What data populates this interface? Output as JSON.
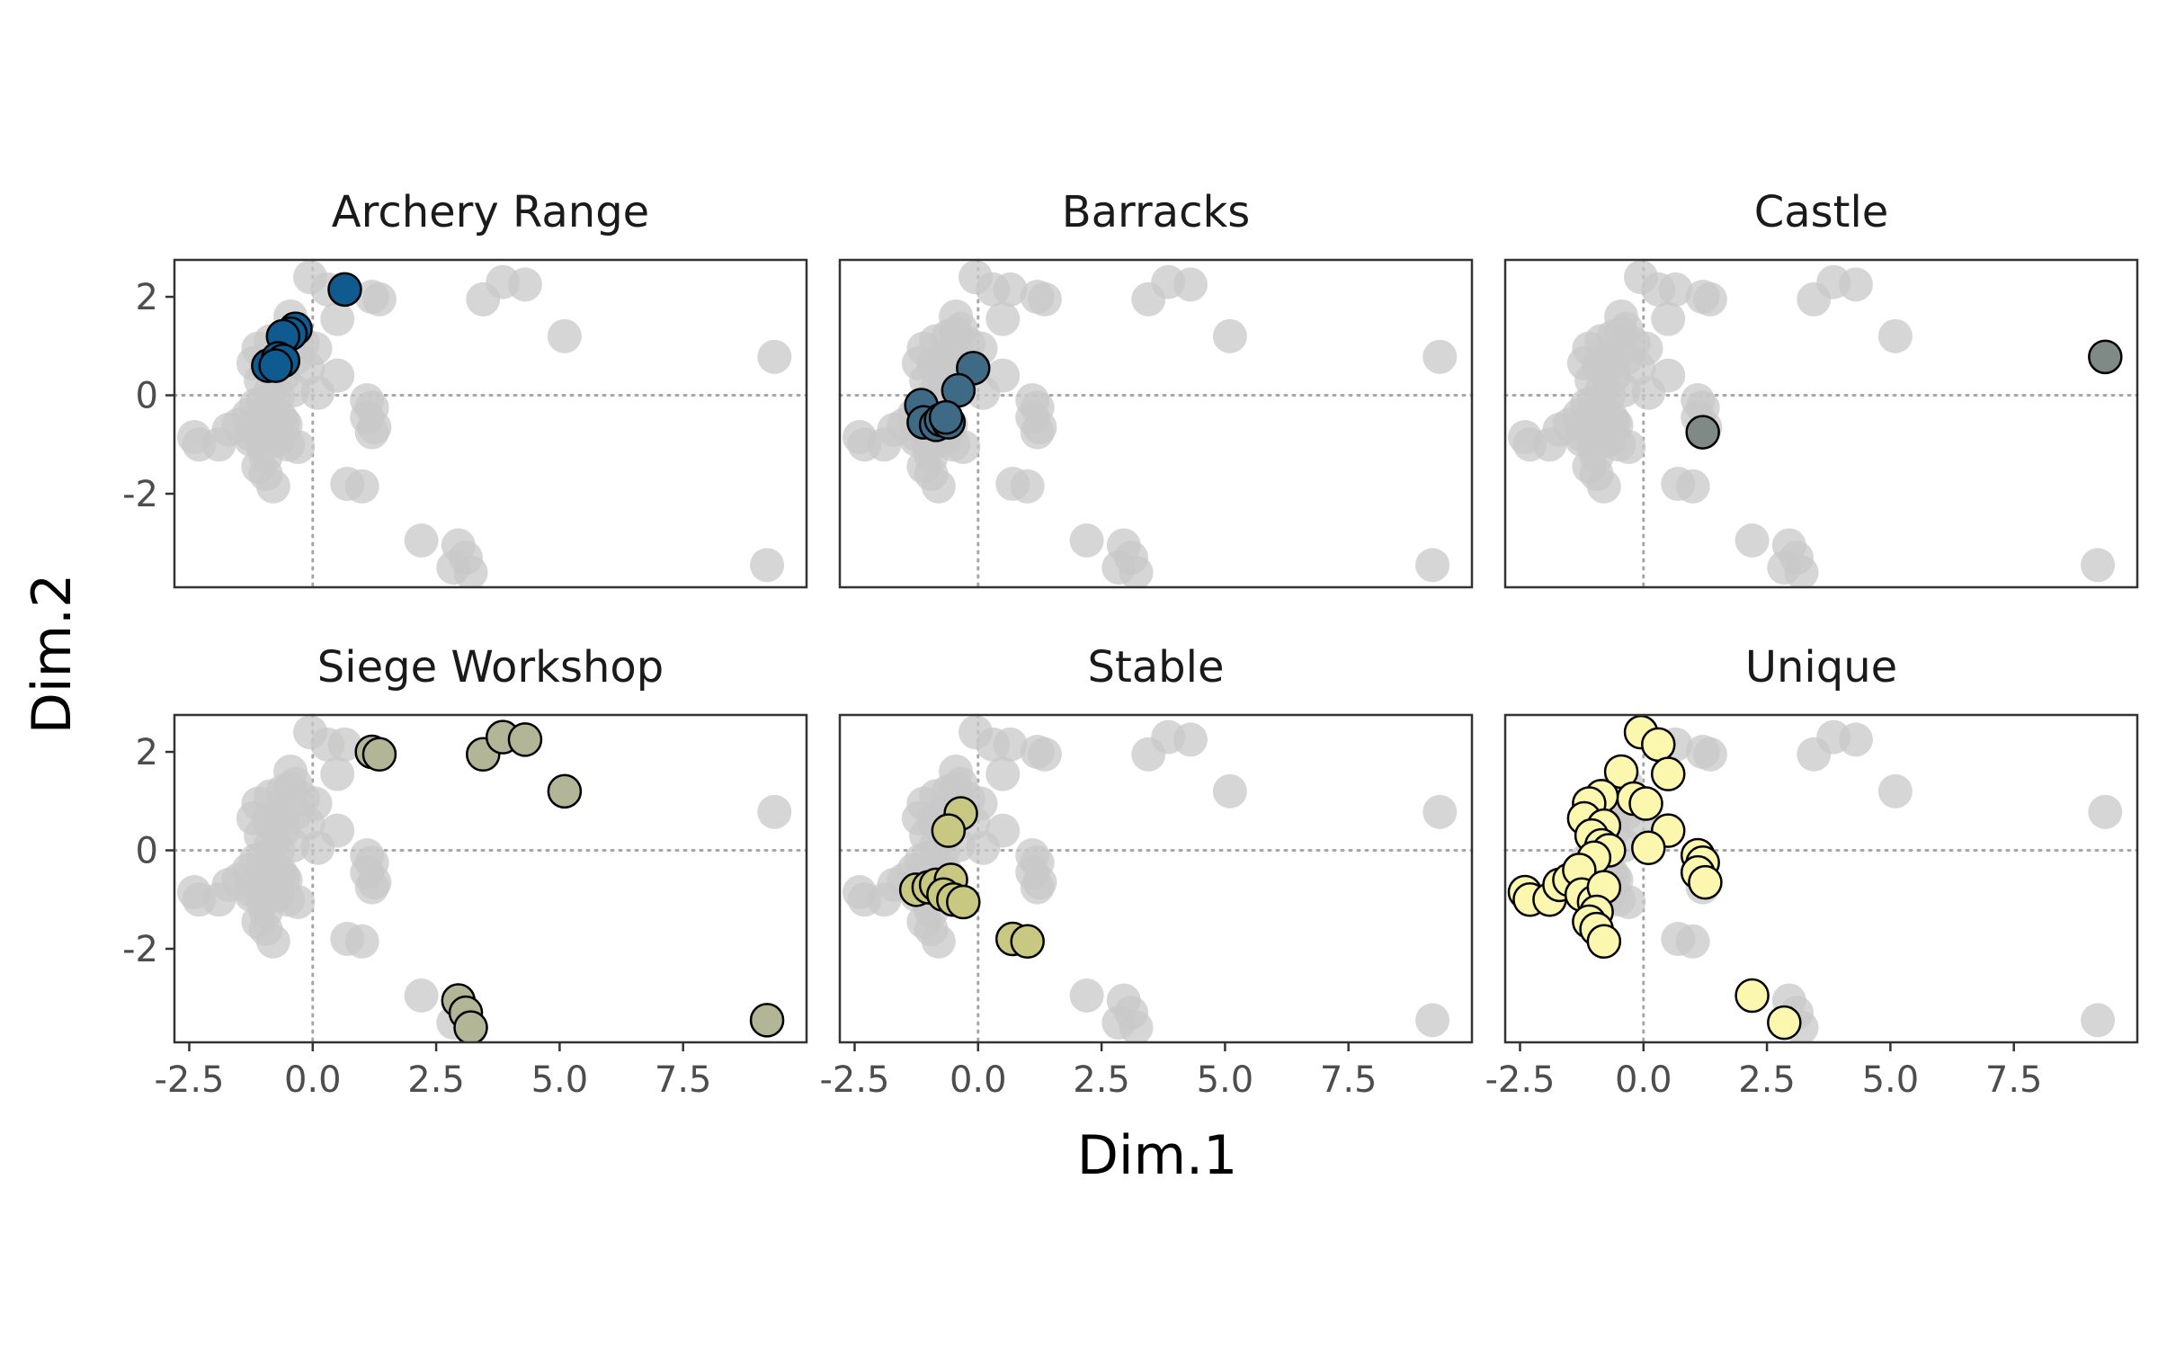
{
  "chart_data": {
    "type": "scatter",
    "xlabel": "Dim.1",
    "ylabel": "Dim.2",
    "xlim": [
      -2.8,
      10.0
    ],
    "ylim": [
      -3.9,
      2.75
    ],
    "xticks": [
      -2.5,
      0.0,
      2.5,
      5.0,
      7.5
    ],
    "xtick_labels": [
      "-2.5",
      "0.0",
      "2.5",
      "5.0",
      "7.5"
    ],
    "yticks": [
      -2,
      0,
      2
    ],
    "ytick_labels": [
      "-2",
      "0",
      "2"
    ],
    "reference_lines": {
      "x": 0,
      "y": 0,
      "style": "dotted"
    },
    "background_point_color": "#c8c8c8",
    "grid": false,
    "facets": [
      {
        "label": "Archery Range",
        "color": "#0f5a8f",
        "points": [
          [
            0.65,
            2.15
          ],
          [
            -0.35,
            1.35
          ],
          [
            -0.45,
            1.25
          ],
          [
            -0.6,
            1.2
          ],
          [
            -0.9,
            0.6
          ],
          [
            -0.7,
            0.75
          ],
          [
            -0.6,
            0.7
          ],
          [
            -0.75,
            0.6
          ]
        ]
      },
      {
        "label": "Barracks",
        "color": "#3e6a85",
        "points": [
          [
            -0.1,
            0.55
          ],
          [
            -0.4,
            0.1
          ],
          [
            -1.15,
            -0.2
          ],
          [
            -1.1,
            -0.55
          ],
          [
            -0.85,
            -0.6
          ],
          [
            -0.75,
            -0.5
          ],
          [
            -0.6,
            -0.55
          ],
          [
            -0.65,
            -0.45
          ]
        ]
      },
      {
        "label": "Castle",
        "color": "#7f8a87",
        "points": [
          [
            9.35,
            0.78
          ],
          [
            1.2,
            -0.75
          ]
        ]
      },
      {
        "label": "Siege Workshop",
        "color": "#b3b597",
        "points": [
          [
            1.2,
            2.0
          ],
          [
            1.35,
            1.95
          ],
          [
            3.45,
            1.95
          ],
          [
            3.85,
            2.3
          ],
          [
            4.3,
            2.25
          ],
          [
            5.1,
            1.2
          ],
          [
            2.95,
            -3.05
          ],
          [
            3.1,
            -3.3
          ],
          [
            3.2,
            -3.6
          ],
          [
            9.2,
            -3.45
          ]
        ]
      },
      {
        "label": "Stable",
        "color": "#c9c882",
        "points": [
          [
            -0.35,
            0.75
          ],
          [
            -0.6,
            0.4
          ],
          [
            -1.25,
            -0.8
          ],
          [
            -1.0,
            -0.75
          ],
          [
            -0.85,
            -0.7
          ],
          [
            -0.55,
            -0.6
          ],
          [
            -0.7,
            -0.9
          ],
          [
            -0.5,
            -1.0
          ],
          [
            -0.3,
            -1.05
          ],
          [
            0.7,
            -1.8
          ],
          [
            1.0,
            -1.85
          ]
        ]
      },
      {
        "label": "Unique",
        "color": "#fbf7ae",
        "points": [
          [
            -0.05,
            2.4
          ],
          [
            0.3,
            2.15
          ],
          [
            -0.45,
            1.6
          ],
          [
            0.5,
            1.55
          ],
          [
            -0.2,
            1.05
          ],
          [
            0.05,
            0.95
          ],
          [
            -0.85,
            1.1
          ],
          [
            -1.1,
            0.95
          ],
          [
            -1.2,
            0.65
          ],
          [
            -0.8,
            0.5
          ],
          [
            -1.05,
            0.3
          ],
          [
            -0.85,
            0.1
          ],
          [
            -0.7,
            0.0
          ],
          [
            -1.0,
            -0.15
          ],
          [
            0.5,
            0.4
          ],
          [
            0.1,
            0.05
          ],
          [
            1.1,
            -0.1
          ],
          [
            1.2,
            -0.25
          ],
          [
            1.1,
            -0.45
          ],
          [
            1.25,
            -0.65
          ],
          [
            -2.4,
            -0.85
          ],
          [
            -2.3,
            -1.0
          ],
          [
            -1.9,
            -1.0
          ],
          [
            -1.7,
            -0.7
          ],
          [
            -1.5,
            -0.6
          ],
          [
            -1.3,
            -0.4
          ],
          [
            -1.25,
            -0.9
          ],
          [
            -1.0,
            -1.05
          ],
          [
            -0.8,
            -0.75
          ],
          [
            -0.95,
            -1.25
          ],
          [
            -1.1,
            -1.45
          ],
          [
            -0.95,
            -1.6
          ],
          [
            -0.8,
            -1.85
          ],
          [
            2.2,
            -2.95
          ],
          [
            2.85,
            -3.5
          ]
        ]
      }
    ]
  }
}
